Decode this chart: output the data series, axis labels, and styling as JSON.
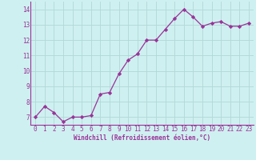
{
  "x": [
    0,
    1,
    2,
    3,
    4,
    5,
    6,
    7,
    8,
    9,
    10,
    11,
    12,
    13,
    14,
    15,
    16,
    17,
    18,
    19,
    20,
    21,
    22,
    23
  ],
  "y": [
    7.0,
    7.7,
    7.3,
    6.7,
    7.0,
    7.0,
    7.1,
    8.5,
    8.6,
    9.8,
    10.7,
    11.1,
    12.0,
    12.0,
    12.7,
    13.4,
    14.0,
    13.5,
    12.9,
    13.1,
    13.2,
    12.9,
    12.9,
    13.1
  ],
  "line_color": "#993399",
  "marker": "D",
  "markersize": 2.2,
  "linewidth": 0.9,
  "bg_color": "#cff0f0",
  "grid_color": "#b0d8d8",
  "xlabel": "Windchill (Refroidissement éolien,°C)",
  "xlabel_color": "#993399",
  "tick_color": "#993399",
  "xlim": [
    -0.5,
    23.5
  ],
  "ylim": [
    6.5,
    14.5
  ],
  "yticks": [
    7,
    8,
    9,
    10,
    11,
    12,
    13,
    14
  ],
  "xticks": [
    0,
    1,
    2,
    3,
    4,
    5,
    6,
    7,
    8,
    9,
    10,
    11,
    12,
    13,
    14,
    15,
    16,
    17,
    18,
    19,
    20,
    21,
    22,
    23
  ],
  "tick_fontsize": 5.5,
  "xlabel_fontsize": 5.5
}
